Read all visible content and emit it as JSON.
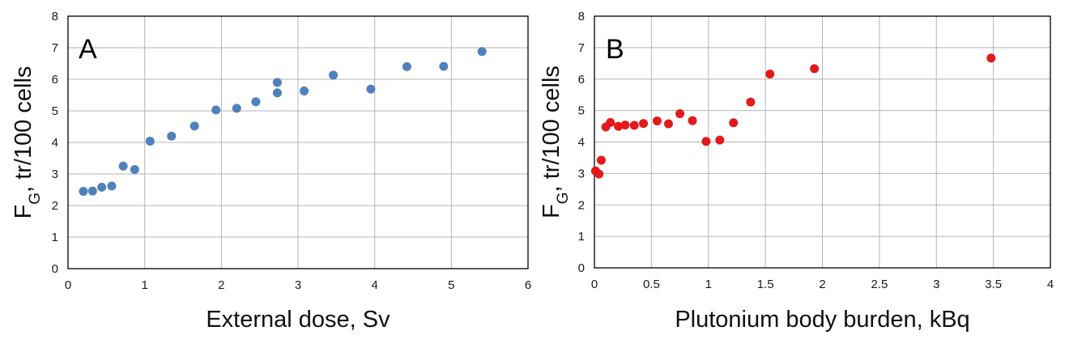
{
  "chart_data": [
    {
      "type": "scatter",
      "panel_label": "A",
      "xlabel": "External dose, Sv",
      "ylabel_main": "F",
      "ylabel_sub": "G",
      "ylabel_rest": ", tr/100 cells",
      "xlim": [
        0,
        6
      ],
      "ylim": [
        0,
        8
      ],
      "xticks": [
        0,
        1,
        2,
        3,
        4,
        5,
        6
      ],
      "xtick_labels": [
        "0",
        "1",
        "2",
        "3",
        "4",
        "5",
        "6"
      ],
      "yticks": [
        0,
        1,
        2,
        3,
        4,
        5,
        6,
        7,
        8
      ],
      "ytick_labels": [
        "0",
        "1",
        "2",
        "3",
        "4",
        "5",
        "6",
        "7",
        "8"
      ],
      "grid": true,
      "marker_color": "#4f81bd",
      "points": [
        {
          "x": 0.2,
          "y": 2.45
        },
        {
          "x": 0.32,
          "y": 2.46
        },
        {
          "x": 0.44,
          "y": 2.58
        },
        {
          "x": 0.57,
          "y": 2.62
        },
        {
          "x": 0.72,
          "y": 3.25
        },
        {
          "x": 0.87,
          "y": 3.14
        },
        {
          "x": 1.07,
          "y": 4.04
        },
        {
          "x": 1.35,
          "y": 4.2
        },
        {
          "x": 1.65,
          "y": 4.52
        },
        {
          "x": 1.93,
          "y": 5.03
        },
        {
          "x": 2.2,
          "y": 5.08
        },
        {
          "x": 2.45,
          "y": 5.29
        },
        {
          "x": 2.73,
          "y": 5.9
        },
        {
          "x": 2.73,
          "y": 5.57
        },
        {
          "x": 3.08,
          "y": 5.63
        },
        {
          "x": 3.46,
          "y": 6.13
        },
        {
          "x": 3.95,
          "y": 5.69
        },
        {
          "x": 4.42,
          "y": 6.4
        },
        {
          "x": 4.9,
          "y": 6.41
        },
        {
          "x": 5.4,
          "y": 6.88
        }
      ]
    },
    {
      "type": "scatter",
      "panel_label": "B",
      "xlabel": "Plutonium body burden, kBq",
      "ylabel_main": "F",
      "ylabel_sub": "G",
      "ylabel_rest": ", tr/100 cells",
      "xlim": [
        0,
        4
      ],
      "ylim": [
        0,
        8
      ],
      "xticks": [
        0,
        0.5,
        1,
        1.5,
        2,
        2.5,
        3,
        3.5,
        4
      ],
      "xtick_labels": [
        "0",
        "0.5",
        "1",
        "1.5",
        "2",
        "2.5",
        "3",
        "3.5",
        "4"
      ],
      "yticks": [
        0,
        1,
        2,
        3,
        4,
        5,
        6,
        7,
        8
      ],
      "ytick_labels": [
        "0",
        "1",
        "2",
        "3",
        "4",
        "5",
        "6",
        "7",
        "8"
      ],
      "grid": true,
      "marker_color": "#e31a1c",
      "points": [
        {
          "x": 0.01,
          "y": 3.08
        },
        {
          "x": 0.04,
          "y": 2.98
        },
        {
          "x": 0.06,
          "y": 3.42
        },
        {
          "x": 0.1,
          "y": 4.48
        },
        {
          "x": 0.14,
          "y": 4.62
        },
        {
          "x": 0.21,
          "y": 4.5
        },
        {
          "x": 0.27,
          "y": 4.54
        },
        {
          "x": 0.35,
          "y": 4.53
        },
        {
          "x": 0.43,
          "y": 4.59
        },
        {
          "x": 0.55,
          "y": 4.67
        },
        {
          "x": 0.65,
          "y": 4.58
        },
        {
          "x": 0.75,
          "y": 4.9
        },
        {
          "x": 0.86,
          "y": 4.68
        },
        {
          "x": 0.98,
          "y": 4.02
        },
        {
          "x": 1.1,
          "y": 4.06
        },
        {
          "x": 1.22,
          "y": 4.61
        },
        {
          "x": 1.37,
          "y": 5.27
        },
        {
          "x": 1.54,
          "y": 6.16
        },
        {
          "x": 1.93,
          "y": 6.33
        },
        {
          "x": 3.48,
          "y": 6.67
        }
      ]
    }
  ]
}
